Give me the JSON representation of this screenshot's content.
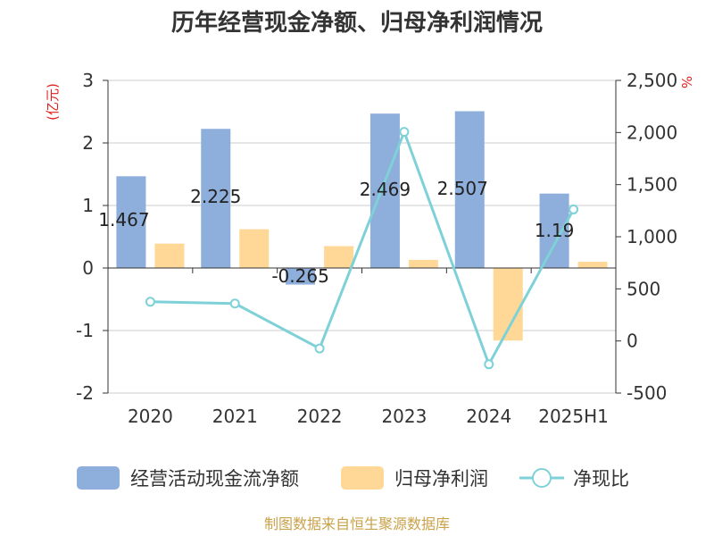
{
  "chart_data": {
    "type": "bar",
    "title": "历年经营现金净额、归母净利润情况",
    "categories": [
      "2020",
      "2021",
      "2022",
      "2023",
      "2024",
      "2025H1"
    ],
    "left_axis": {
      "unit_label": "(亿元)",
      "range": [
        -2,
        3
      ],
      "ticks": [
        "3",
        "2",
        "1",
        "0",
        "-1",
        "-2"
      ]
    },
    "right_axis": {
      "unit_label": "%",
      "range": [
        -500,
        2500
      ],
      "ticks": [
        "2,500",
        "2,000",
        "1,500",
        "1,000",
        "500",
        "0",
        "-500"
      ]
    },
    "series": [
      {
        "name": "经营活动现金流净额",
        "kind": "bar",
        "axis": "left",
        "color": "#8eaedb",
        "values": [
          1.467,
          2.225,
          -0.265,
          2.469,
          2.507,
          1.19
        ],
        "labels": [
          "1.467",
          "2.225",
          "-0.265",
          "2.469",
          "2.507",
          "1.19"
        ]
      },
      {
        "name": "归母净利润",
        "kind": "bar",
        "axis": "left",
        "color": "#ffd898",
        "values": [
          0.39,
          0.62,
          0.35,
          0.13,
          -1.16,
          0.1
        ]
      },
      {
        "name": "净现比",
        "kind": "line",
        "axis": "right",
        "color": "#7fd1d8",
        "values": [
          376,
          359,
          -72,
          2006,
          -224,
          1262
        ]
      }
    ],
    "legend_position": "bottom",
    "grid": true
  },
  "footer": {
    "source": "制图数据来自恒生聚源数据库"
  }
}
